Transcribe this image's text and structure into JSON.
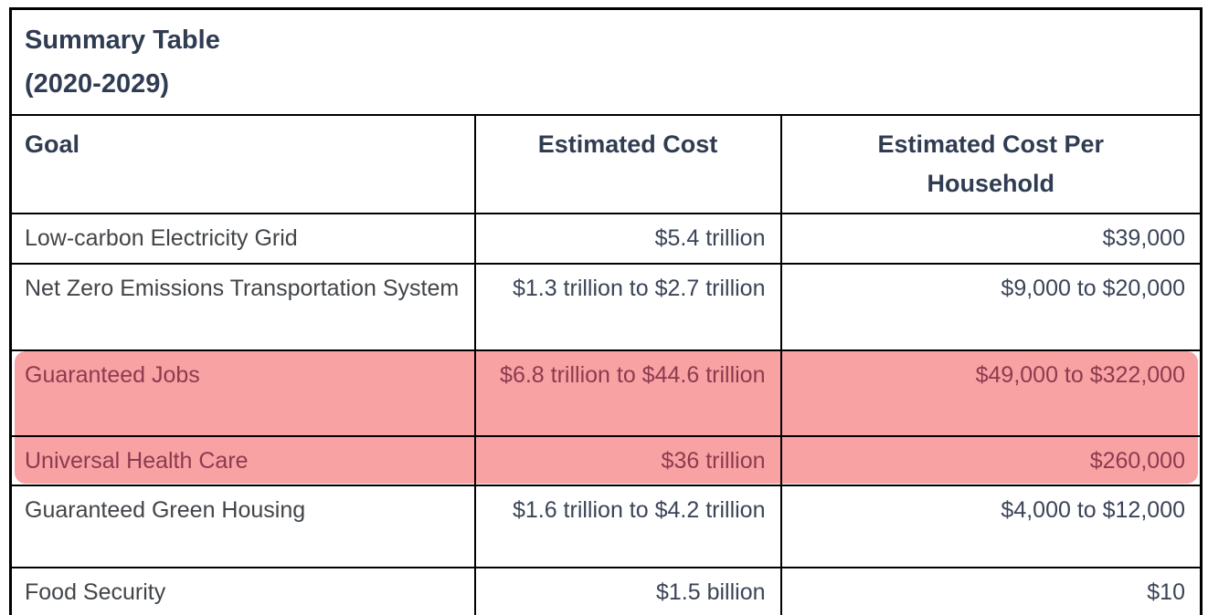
{
  "title": {
    "line1": "Summary Table",
    "line2": "(2020-2029)"
  },
  "table": {
    "columns": [
      "Goal",
      "Estimated Cost",
      "Estimated Cost Per Household"
    ],
    "rows": [
      {
        "goal": "Low-carbon Electricity Grid",
        "cost": "$5.4 trillion",
        "cost_per_household": "$39,000",
        "highlighted": false
      },
      {
        "goal": "Net Zero Emissions Transportation System",
        "cost": "$1.3 trillion to $2.7 trillion",
        "cost_per_household": "$9,000 to $20,000",
        "highlighted": false
      },
      {
        "goal": "Guaranteed Jobs",
        "cost": "$6.8 trillion to $44.6 trillion",
        "cost_per_household": "$49,000 to $322,000",
        "highlighted": true
      },
      {
        "goal": "Universal Health Care",
        "cost": "$36 trillion",
        "cost_per_household": "$260,000",
        "highlighted": true
      },
      {
        "goal": "Guaranteed Green Housing",
        "cost": "$1.6 trillion to $4.2 trillion",
        "cost_per_household": "$4,000 to $12,000",
        "highlighted": false
      },
      {
        "goal": "Food Security",
        "cost": "$1.5 billion",
        "cost_per_household": "$10",
        "highlighted": false
      }
    ]
  },
  "colors": {
    "header_text": "#303c52",
    "goal_text": "#414549",
    "value_text": "#3b4457",
    "highlight_background": "#f9a2a4",
    "highlight_text": "#8c3b4f",
    "border": "#000000",
    "page_background": "#ffffff"
  }
}
